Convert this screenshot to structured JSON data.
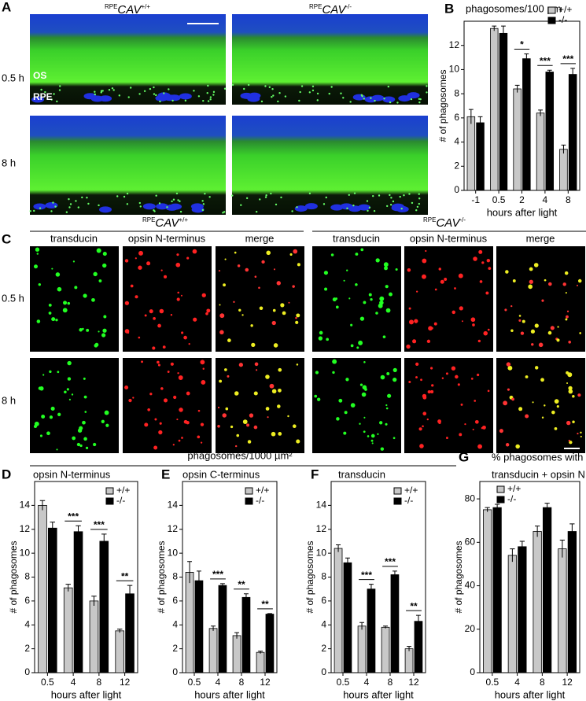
{
  "figure": {
    "panel_a": "A",
    "panel_c": "C",
    "genotypes": [
      {
        "prefix": "RPE",
        "gene": "CAV",
        "genotype": "+/+"
      },
      {
        "prefix": "RPE",
        "gene": "CAV",
        "genotype": "-/-"
      }
    ],
    "a_rows": [
      "0.5 h",
      "8 h"
    ],
    "a_layers": [
      "OS",
      "RPE"
    ],
    "c_columns": [
      "transducin",
      "opsin N-terminus",
      "merge"
    ],
    "c_rows": [
      "0.5 h",
      "8 h"
    ],
    "shared_title": "phagosomes/1000 µm²"
  },
  "chart_data": [
    {
      "type": "bar",
      "label": "B",
      "title": "phagosomes/100 µm",
      "xlabel": "hours after light",
      "ylabel": "# of phagosomes",
      "categories": [
        "-1",
        "0.5",
        "2",
        "4",
        "8"
      ],
      "ylim": [
        0,
        14
      ],
      "yticks": [
        0,
        2,
        4,
        6,
        8,
        10,
        12
      ],
      "legend": "top-right",
      "series": [
        {
          "name": "+/+",
          "color": "#c8c8c8",
          "values": [
            6.1,
            13.4,
            8.4,
            6.4,
            3.4
          ],
          "errors": [
            0.6,
            0.2,
            0.3,
            0.25,
            0.35
          ]
        },
        {
          "name": "-/-",
          "color": "#000000",
          "values": [
            5.6,
            13.0,
            10.9,
            9.8,
            9.6
          ],
          "errors": [
            0.5,
            0.6,
            0.4,
            0.15,
            0.5
          ]
        }
      ],
      "annotations": [
        null,
        null,
        "*",
        "***",
        "***"
      ]
    },
    {
      "type": "bar",
      "label": "D",
      "title": "opsin N-terminus",
      "xlabel": "hours after light",
      "ylabel": "# of phagosomes",
      "categories": [
        "0.5",
        "4",
        "8",
        "12"
      ],
      "ylim": [
        0,
        16
      ],
      "yticks": [
        0,
        2,
        4,
        6,
        8,
        10,
        12,
        14
      ],
      "legend": "top-right",
      "series": [
        {
          "name": "+/+",
          "color": "#c8c8c8",
          "values": [
            14.0,
            7.1,
            6.0,
            3.5
          ],
          "errors": [
            0.4,
            0.3,
            0.4,
            0.15
          ]
        },
        {
          "name": "-/-",
          "color": "#000000",
          "values": [
            12.1,
            11.8,
            11.0,
            6.6
          ],
          "errors": [
            0.5,
            0.5,
            0.6,
            0.7
          ]
        }
      ],
      "annotations": [
        null,
        "***",
        "***",
        "**"
      ]
    },
    {
      "type": "bar",
      "label": "E",
      "title": "opsin C-terminus",
      "xlabel": "hours after light",
      "ylabel": "# of phagosomes",
      "categories": [
        "0.5",
        "4",
        "8",
        "12"
      ],
      "ylim": [
        0,
        16
      ],
      "yticks": [
        0,
        2,
        4,
        6,
        8,
        10,
        12,
        14
      ],
      "legend": "top-right",
      "series": [
        {
          "name": "+/+",
          "color": "#c8c8c8",
          "values": [
            8.4,
            3.7,
            3.1,
            1.7
          ],
          "errors": [
            0.9,
            0.2,
            0.25,
            0.1
          ]
        },
        {
          "name": "-/-",
          "color": "#000000",
          "values": [
            7.7,
            7.3,
            6.3,
            4.9
          ],
          "errors": [
            0.8,
            0.15,
            0.3,
            0.05
          ]
        }
      ],
      "annotations": [
        null,
        "***",
        "**",
        "**"
      ]
    },
    {
      "type": "bar",
      "label": "F",
      "title": "transducin",
      "xlabel": "hours after light",
      "ylabel": "# of phagosomes",
      "categories": [
        "0.5",
        "4",
        "8",
        "12"
      ],
      "ylim": [
        0,
        16
      ],
      "yticks": [
        0,
        2,
        4,
        6,
        8,
        10,
        12,
        14
      ],
      "legend": "top-right",
      "series": [
        {
          "name": "+/+",
          "color": "#c8c8c8",
          "values": [
            10.4,
            3.9,
            3.8,
            2.0
          ],
          "errors": [
            0.3,
            0.3,
            0.1,
            0.2
          ]
        },
        {
          "name": "-/-",
          "color": "#000000",
          "values": [
            9.2,
            7.0,
            8.2,
            4.3
          ],
          "errors": [
            0.4,
            0.4,
            0.3,
            0.5
          ]
        }
      ],
      "annotations": [
        null,
        "***",
        "***",
        "**"
      ]
    },
    {
      "type": "bar",
      "label": "G",
      "title": [
        "% phagosomes with",
        "transducin + opsin N"
      ],
      "xlabel": "hours after light",
      "ylabel": "# of phagosomes",
      "categories": [
        "0.5",
        "4",
        "8",
        "12"
      ],
      "ylim": [
        0,
        88
      ],
      "yticks": [
        0,
        20,
        40,
        60,
        80
      ],
      "legend": "top-left",
      "series": [
        {
          "name": "+/+",
          "color": "#c8c8c8",
          "values": [
            75,
            54,
            65,
            57
          ],
          "errors": [
            1,
            3,
            2.5,
            4
          ]
        },
        {
          "name": "-/-",
          "color": "#000000",
          "values": [
            76,
            58,
            76,
            65
          ],
          "errors": [
            1.5,
            2.5,
            2,
            3.5
          ]
        }
      ],
      "annotations": [
        null,
        null,
        null,
        null
      ]
    }
  ]
}
